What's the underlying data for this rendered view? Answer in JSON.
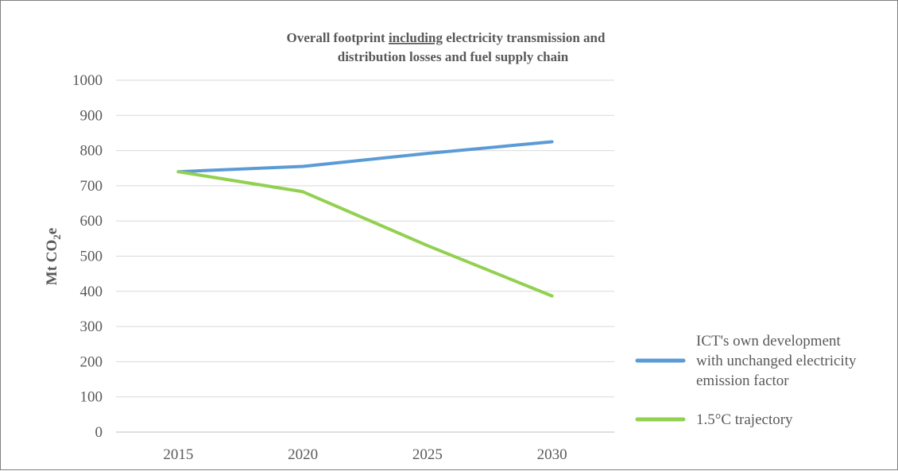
{
  "chart_data": {
    "type": "line",
    "title_line1_pre": "Overall footprint ",
    "title_line1_underlined": "including",
    "title_line1_post": " electricity transmission and",
    "title_line2": "distribution losses and fuel supply chain",
    "ylabel_main": "Mt CO",
    "ylabel_sub": "2",
    "ylabel_tail": "e",
    "xlabel": "",
    "categories": [
      "2015",
      "2020",
      "2025",
      "2030"
    ],
    "yticks": [
      "0",
      "100",
      "200",
      "300",
      "400",
      "500",
      "600",
      "700",
      "800",
      "900",
      "1000"
    ],
    "ylim": [
      0,
      1000
    ],
    "grid": true,
    "legend_position": "right",
    "series": [
      {
        "name_lines": [
          "ICT's own development",
          "with unchanged electricity",
          "emission factor"
        ],
        "color": "#5b9bd5",
        "values": [
          740,
          755,
          792,
          825
        ]
      },
      {
        "name_lines": [
          "1.5°C trajectory"
        ],
        "color": "#92d050",
        "values": [
          740,
          683,
          530,
          387
        ]
      }
    ]
  }
}
